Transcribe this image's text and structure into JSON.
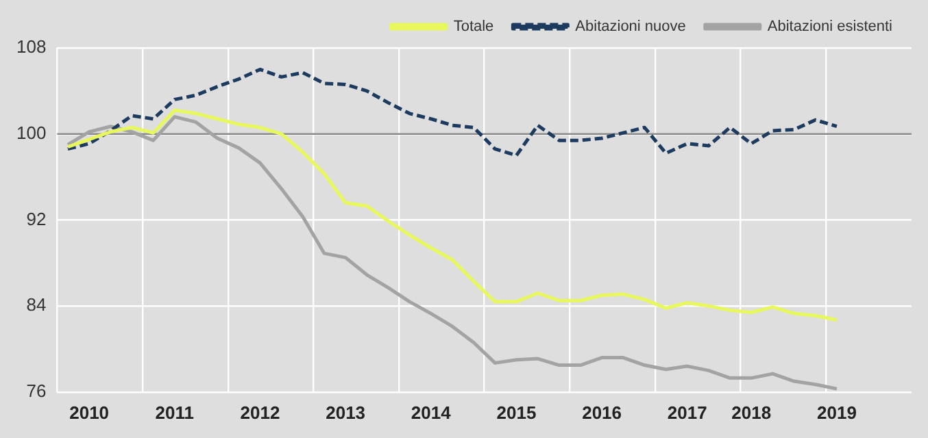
{
  "chart_data": {
    "type": "line",
    "categories": [
      null,
      "2010",
      null,
      null,
      null,
      "2011",
      null,
      null,
      null,
      "2012",
      null,
      null,
      null,
      "2013",
      null,
      null,
      null,
      "2014",
      null,
      null,
      null,
      "2015",
      null,
      null,
      null,
      "2016",
      null,
      null,
      null,
      "2017",
      null,
      null,
      "2018",
      null,
      null,
      null,
      "2019",
      null,
      null,
      null
    ],
    "series": [
      {
        "name": "Totale",
        "color": "#e8f75c",
        "line_style": "solid",
        "values": [
          98.8,
          99.5,
          100.2,
          100.6,
          100.1,
          102.2,
          101.9,
          101.4,
          100.9,
          100.6,
          100.0,
          98.3,
          96.3,
          93.6,
          93.3,
          91.9,
          90.6,
          89.4,
          88.3,
          86.3,
          84.4,
          84.4,
          85.2,
          84.5,
          84.5,
          85.0,
          85.1,
          84.6,
          83.8,
          84.3,
          84.0,
          83.6,
          83.4,
          83.9,
          83.3,
          83.1,
          82.7,
          null,
          null,
          null
        ]
      },
      {
        "name": "Abitazioni nuove",
        "color": "#1c3b5e",
        "line_style": "dashed",
        "values": [
          98.6,
          99.1,
          100.3,
          101.7,
          101.4,
          103.2,
          103.6,
          104.4,
          105.1,
          106.0,
          105.3,
          105.7,
          104.7,
          104.6,
          104.0,
          102.9,
          101.9,
          101.4,
          100.8,
          100.6,
          98.6,
          98.0,
          100.8,
          99.4,
          99.4,
          99.6,
          100.1,
          100.6,
          98.2,
          99.1,
          98.9,
          100.6,
          99.1,
          100.3,
          100.4,
          101.3,
          100.7,
          null,
          null,
          null
        ]
      },
      {
        "name": "Abitazioni esistenti",
        "color": "#a3a3a3",
        "line_style": "solid",
        "values": [
          99.0,
          100.2,
          100.7,
          100.2,
          99.4,
          101.6,
          101.1,
          99.6,
          98.7,
          97.3,
          94.9,
          92.3,
          88.9,
          88.5,
          86.9,
          85.7,
          84.4,
          83.3,
          82.1,
          80.6,
          78.7,
          79.0,
          79.1,
          78.5,
          78.5,
          79.2,
          79.2,
          78.5,
          78.1,
          78.4,
          78.0,
          77.3,
          77.3,
          77.7,
          77.0,
          76.7,
          76.3,
          null,
          null,
          null
        ]
      }
    ],
    "ylim": [
      76,
      108
    ],
    "yticks": [
      76,
      84,
      92,
      100,
      108
    ],
    "grid": true,
    "legend": "top right",
    "ref_lines": [
      {
        "axis": "y",
        "value": 100,
        "color": "#8c8c8c"
      }
    ]
  }
}
